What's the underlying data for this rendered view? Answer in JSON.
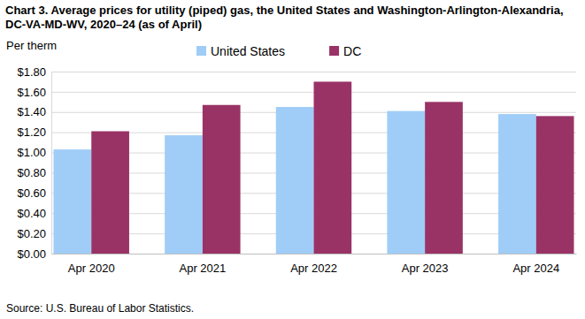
{
  "chart_data": {
    "type": "bar",
    "title": "Chart 3. Average prices for utility (piped) gas, the United States and Washington-Arlington-Alexandria, DC-VA-MD-WV, 2020–24 (as of April)",
    "y_label": "Per therm",
    "annotations": [
      "Source: U.S. Bureau of Labor Statistics."
    ],
    "categories": [
      "Apr 2020",
      "Apr 2021",
      "Apr 2022",
      "Apr 2023",
      "Apr 2024"
    ],
    "series": [
      {
        "name": "United States",
        "color": "#9fcdf7",
        "values": [
          1.03,
          1.17,
          1.45,
          1.41,
          1.38
        ]
      },
      {
        "name": "DC",
        "color": "#993366",
        "values": [
          1.21,
          1.47,
          1.7,
          1.5,
          1.36
        ]
      }
    ],
    "ylim": [
      0,
      1.8
    ],
    "yticks": [
      {
        "value": 0,
        "label": "$0.00"
      },
      {
        "value": 0.2,
        "label": "$0.20"
      },
      {
        "value": 0.4,
        "label": "$0.40"
      },
      {
        "value": 0.6,
        "label": "$0.60"
      },
      {
        "value": 0.8,
        "label": "$0.80"
      },
      {
        "value": 1.0,
        "label": "$1.00"
      },
      {
        "value": 1.2,
        "label": "$1.20"
      },
      {
        "value": 1.4,
        "label": "$1.40"
      },
      {
        "value": 1.6,
        "label": "$1.60"
      },
      {
        "value": 1.8,
        "label": "$1.80"
      }
    ],
    "grid": true,
    "legend": "top"
  }
}
